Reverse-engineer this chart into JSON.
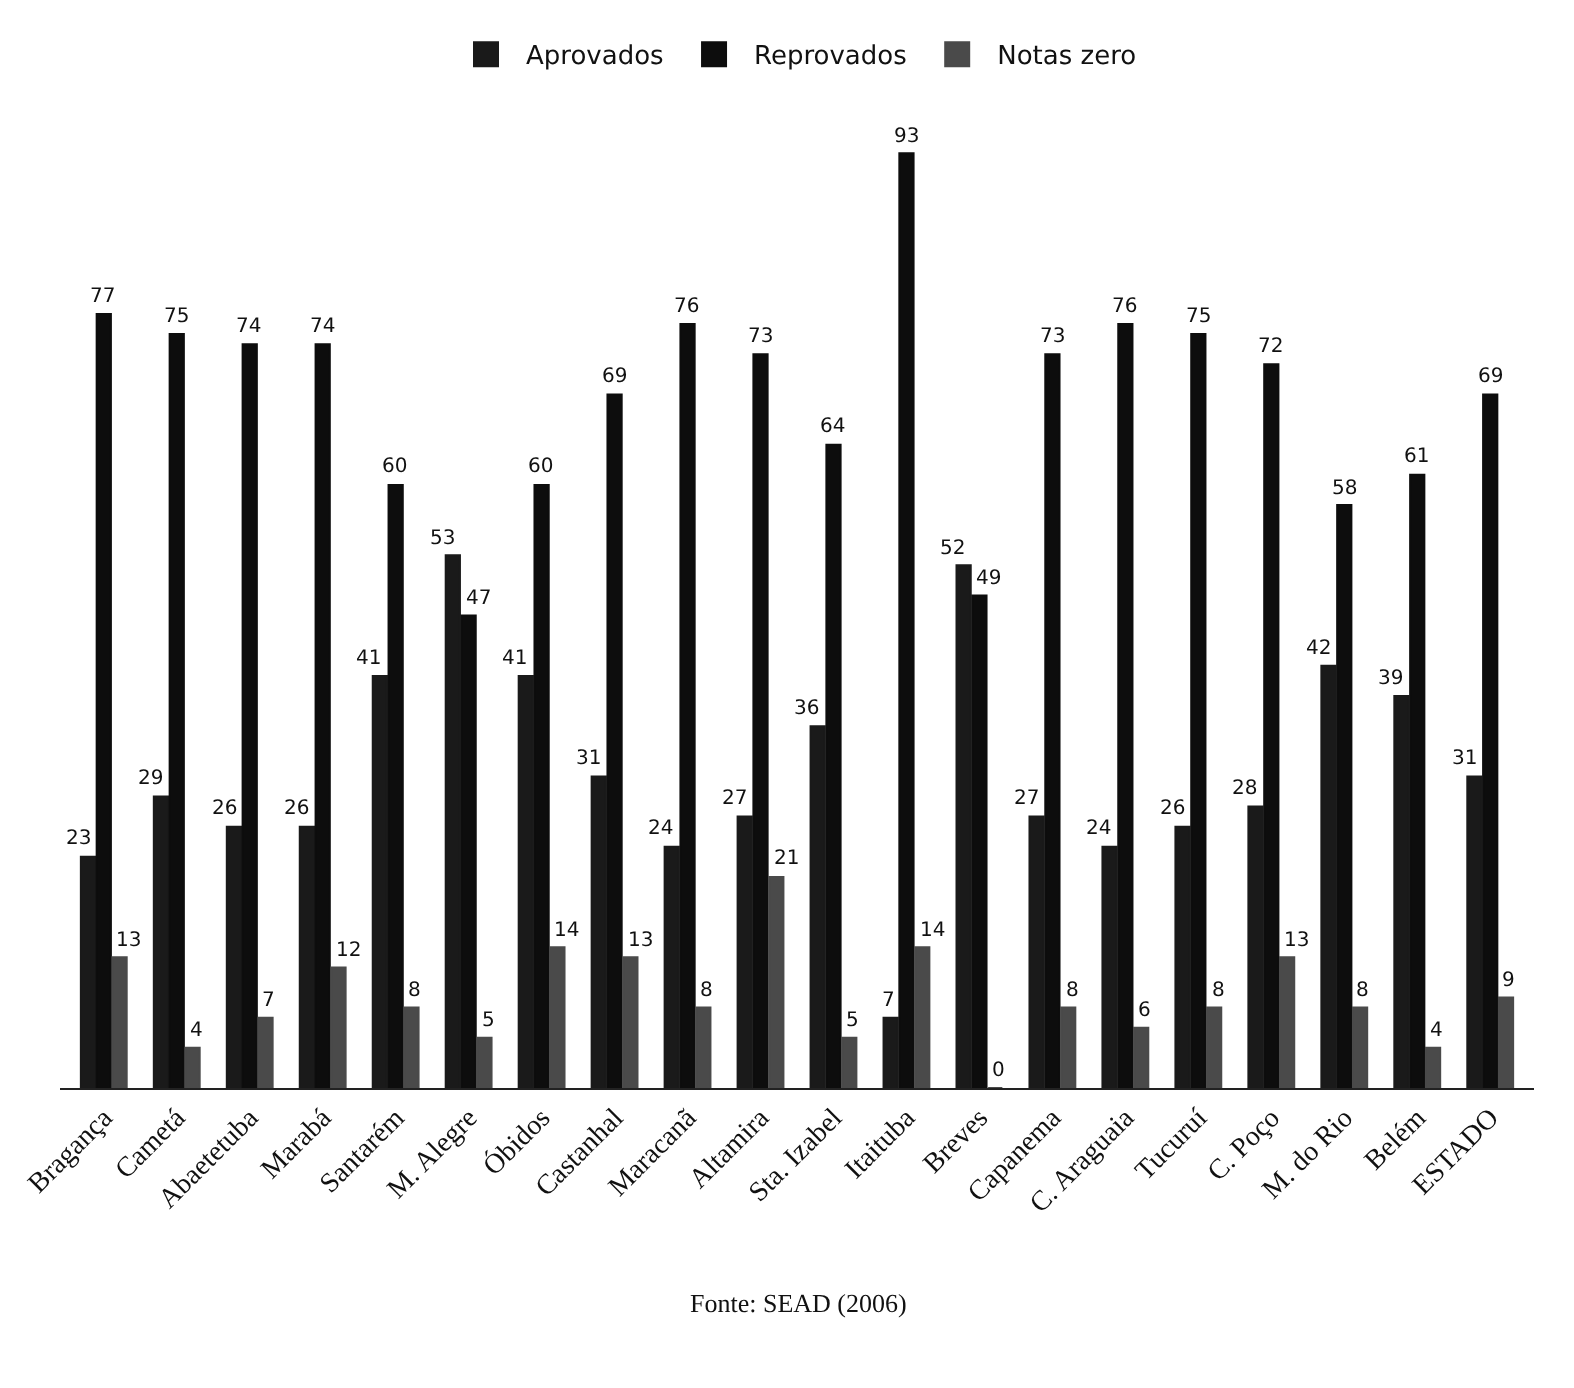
{
  "chart_data": {
    "type": "bar",
    "categories": [
      "Bragança",
      "Cametá",
      "Abaetetuba",
      "Marabá",
      "Santarém",
      "M. Alegre",
      "Óbidos",
      "Castanhal",
      "Maracanã",
      "Altamira",
      "Sta. Izabel",
      "Itaituba",
      "Breves",
      "Capanema",
      "C. Araguaia",
      "Tucuruí",
      "C. Poço",
      "M. do Rio",
      "Belém",
      "ESTADO"
    ],
    "series": [
      {
        "name": "Aprovados",
        "color": "#1a1a1a",
        "values": [
          23,
          29,
          26,
          26,
          41,
          53,
          41,
          31,
          24,
          27,
          36,
          7,
          52,
          27,
          24,
          26,
          28,
          42,
          39,
          31
        ]
      },
      {
        "name": "Reprovados",
        "color": "#0d0d0d",
        "values": [
          77,
          75,
          74,
          74,
          60,
          47,
          60,
          69,
          76,
          73,
          64,
          93,
          49,
          73,
          76,
          75,
          72,
          58,
          61,
          69
        ]
      },
      {
        "name": "Notas zero",
        "color": "#4a4a4a",
        "values": [
          13,
          4,
          7,
          12,
          8,
          5,
          14,
          13,
          8,
          21,
          5,
          14,
          0,
          8,
          6,
          8,
          13,
          8,
          4,
          9
        ]
      }
    ],
    "data_labels": true,
    "legend": "top",
    "annotations": [
      "Fonte: SEAD (2006)"
    ]
  }
}
